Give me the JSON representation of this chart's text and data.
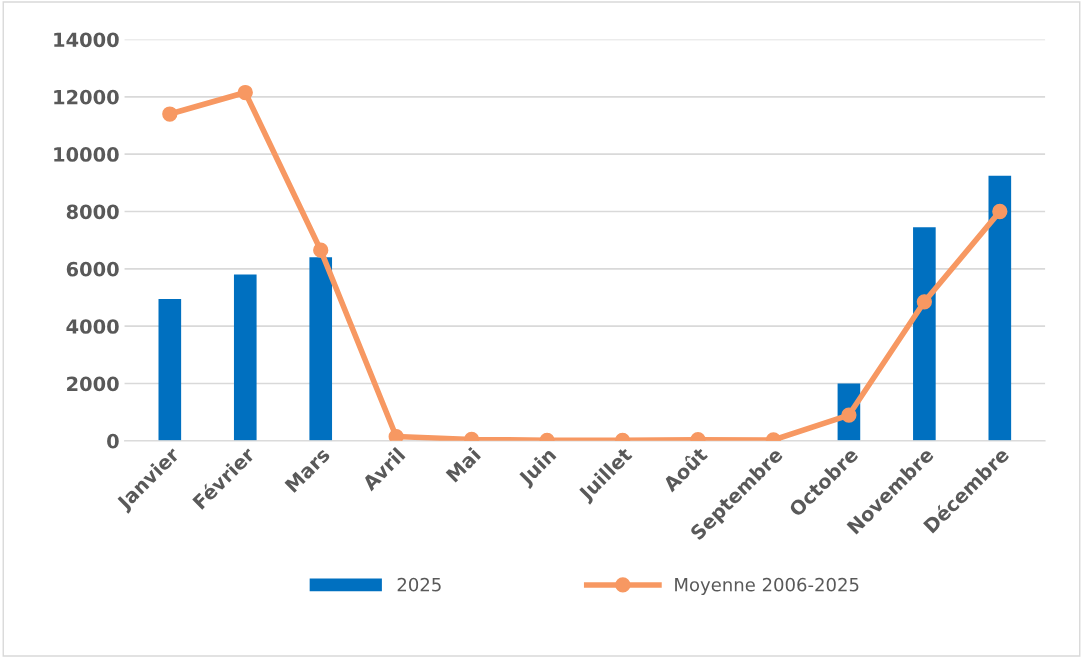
{
  "chart_data": {
    "type": "bar",
    "categories": [
      "Janvier",
      "Février",
      "Mars",
      "Avril",
      "Mai",
      "Juin",
      "Juillet",
      "Août",
      "Septembre",
      "Octobre",
      "Novembre",
      "Décembre"
    ],
    "series": [
      {
        "name": "2025",
        "color": "#0070c0",
        "values": [
          4950,
          5800,
          6400,
          0,
          0,
          0,
          0,
          0,
          0,
          2000,
          7450,
          9250
        ]
      },
      {
        "name": "Moyenne 2006-2025",
        "type": "line",
        "color": "#f79862",
        "values": [
          11400,
          12150,
          6650,
          150,
          50,
          20,
          20,
          40,
          30,
          900,
          4850,
          8000
        ]
      }
    ],
    "ylim": [
      0,
      14000
    ],
    "yticks": [
      0,
      2000,
      4000,
      6000,
      8000,
      10000,
      12000,
      14000
    ],
    "grid": "y",
    "legend": "bottom",
    "marker": "circle",
    "line_style": "solid"
  }
}
